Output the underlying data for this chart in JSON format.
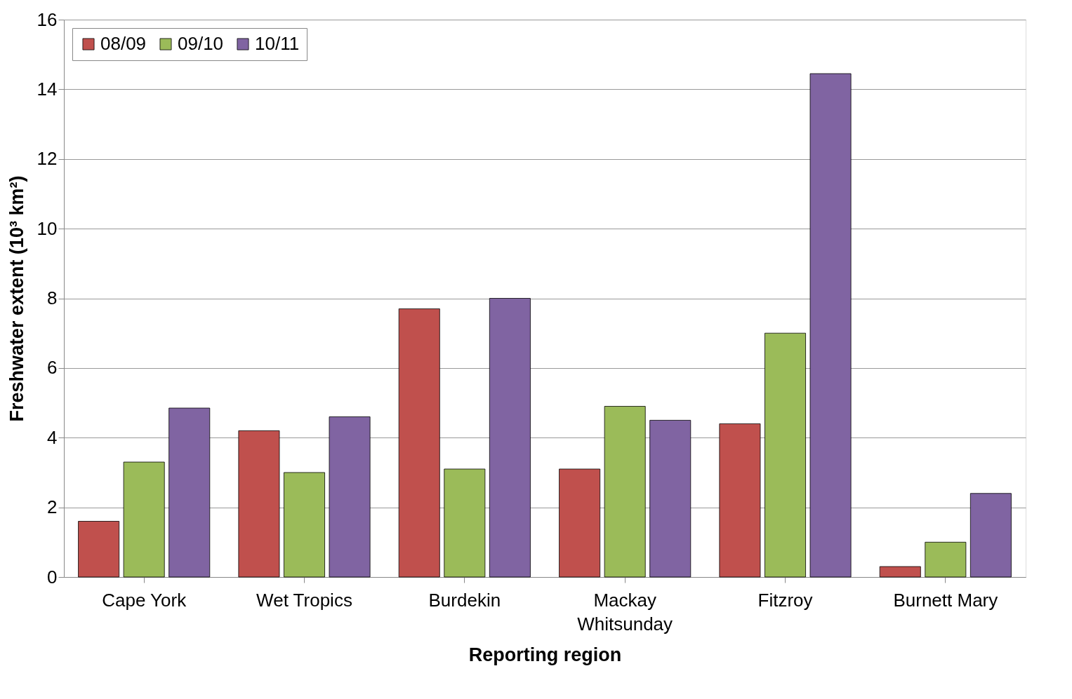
{
  "chart_data": {
    "type": "bar",
    "xlabel": "Reporting region",
    "ylabel": "Freshwater extent (10³ km²)",
    "categories": [
      "Cape York",
      "Wet Tropics",
      "Burdekin",
      "Mackay Whitsunday",
      "Fitzroy",
      "Burnett Mary"
    ],
    "series": [
      {
        "name": "08/09",
        "color": "#c0504d",
        "values": [
          1.6,
          4.2,
          7.7,
          3.1,
          4.4,
          0.3
        ]
      },
      {
        "name": "09/10",
        "color": "#9bbb59",
        "values": [
          3.3,
          3.0,
          3.1,
          4.9,
          7.0,
          1.0
        ]
      },
      {
        "name": "10/11",
        "color": "#8064a2",
        "values": [
          4.85,
          4.6,
          8.0,
          4.5,
          14.45,
          2.4
        ]
      }
    ],
    "ylim": [
      0,
      16
    ],
    "yticks": [
      0,
      2,
      4,
      6,
      8,
      10,
      12,
      14,
      16
    ],
    "grid": "y",
    "legend": "top left"
  }
}
